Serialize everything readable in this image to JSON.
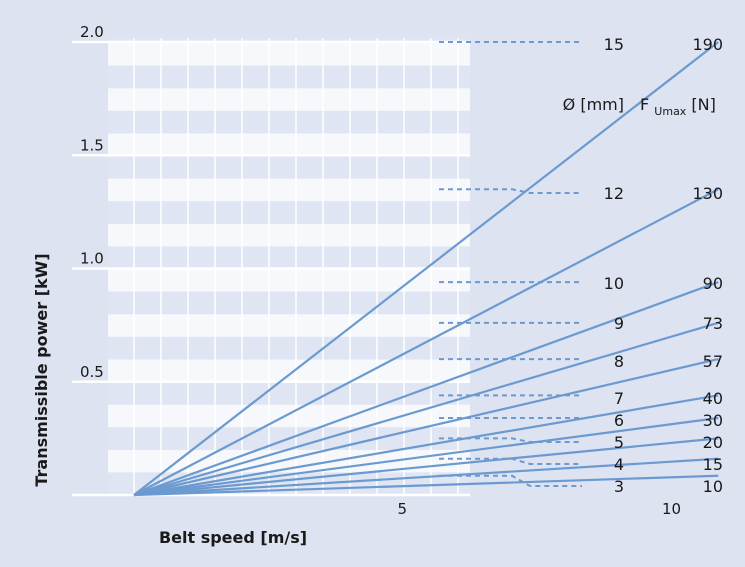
{
  "chart_data": {
    "type": "line",
    "xlabel": "Belt speed [m/s]",
    "ylabel": "Transmissible power [kW]",
    "xlim": [
      0,
      12
    ],
    "ylim": [
      0,
      2.0
    ],
    "x_ticks": [
      "5",
      "10"
    ],
    "y_ticks": [
      "0.5",
      "1.0",
      "1.5",
      "2.0"
    ],
    "column_headers": {
      "diameter": "Ø [mm]",
      "force_main": "F",
      "force_sub": "Umax",
      "force_unit": "[N]"
    },
    "series": [
      {
        "diameter": "15",
        "force": "190",
        "x": [
          0,
          10.85
        ],
        "y": [
          0,
          2.0
        ]
      },
      {
        "diameter": "12",
        "force": "130",
        "x": [
          0,
          10.85
        ],
        "y": [
          0,
          1.35
        ]
      },
      {
        "diameter": "10",
        "force": "90",
        "x": [
          0,
          10.85
        ],
        "y": [
          0,
          0.94
        ]
      },
      {
        "diameter": "9",
        "force": "73",
        "x": [
          0,
          10.85
        ],
        "y": [
          0,
          0.76
        ]
      },
      {
        "diameter": "8",
        "force": "57",
        "x": [
          0,
          10.85
        ],
        "y": [
          0,
          0.6
        ]
      },
      {
        "diameter": "7",
        "force": "40",
        "x": [
          0,
          10.85
        ],
        "y": [
          0,
          0.44
        ]
      },
      {
        "diameter": "6",
        "force": "30",
        "x": [
          0,
          10.85
        ],
        "y": [
          0,
          0.34
        ]
      },
      {
        "diameter": "5",
        "force": "20",
        "x": [
          0,
          10.85
        ],
        "y": [
          0,
          0.25
        ]
      },
      {
        "diameter": "4",
        "force": "15",
        "x": [
          0,
          10.85
        ],
        "y": [
          0,
          0.16
        ]
      },
      {
        "diameter": "3",
        "force": "10",
        "x": [
          0,
          10.85
        ],
        "y": [
          0,
          0.085
        ]
      }
    ],
    "colors": {
      "line": "#6b9ad0",
      "background": "#dde3f1",
      "band_light": "#f6f8fc",
      "band_dark": "#dfe5f2",
      "grid": "#ffffff"
    }
  }
}
